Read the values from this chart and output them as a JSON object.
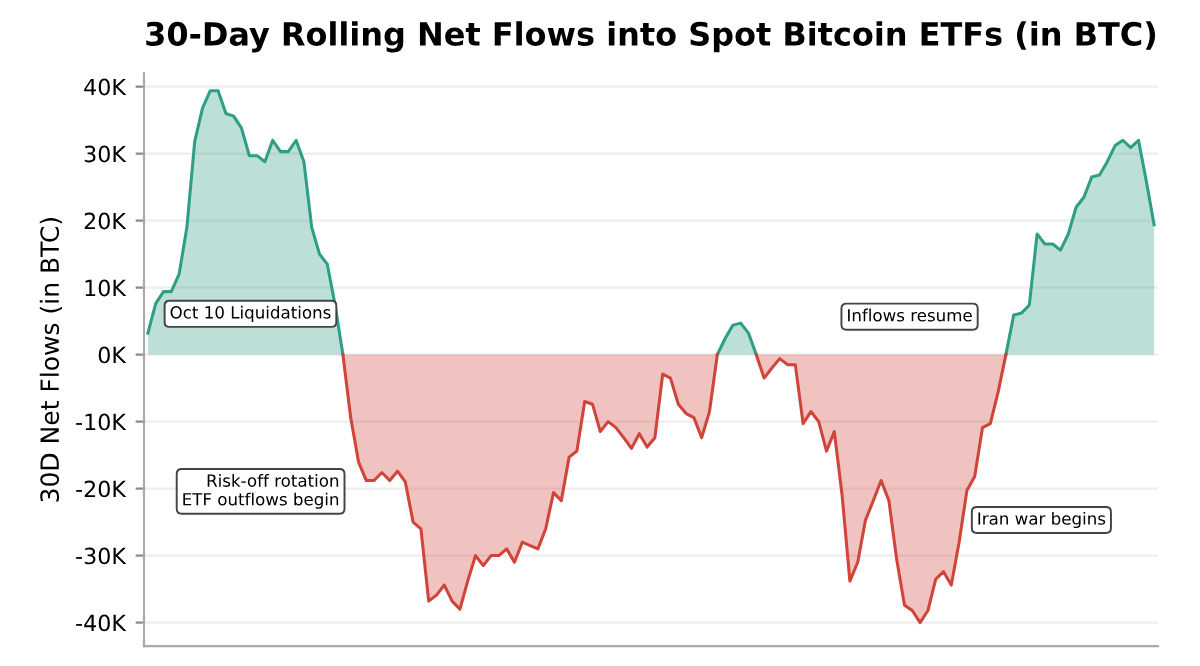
{
  "chart_data": {
    "type": "area",
    "title": "30-Day Rolling Net Flows into Spot Bitcoin ETFs (in BTC)",
    "ylabel": "30D Net Flows (in BTC)",
    "categories": [
      null,
      null,
      null,
      null,
      null,
      null,
      null,
      null,
      null,
      null,
      null,
      null,
      null,
      null,
      null,
      null,
      null,
      null,
      null,
      null,
      null,
      null,
      null,
      null,
      null,
      null,
      null,
      null,
      null,
      null,
      null,
      null,
      null,
      null,
      null,
      null,
      null,
      null,
      null,
      null,
      null,
      null,
      null,
      null,
      null,
      null,
      null,
      null,
      null,
      null,
      null,
      null,
      null,
      null,
      null,
      null,
      null,
      null,
      null,
      null,
      null,
      null,
      null,
      null,
      null,
      null,
      null,
      null,
      null,
      null,
      null,
      null,
      null,
      null,
      null,
      null,
      null,
      null,
      null,
      null,
      null,
      null,
      null,
      null,
      null,
      null,
      null,
      null,
      null,
      null,
      null,
      null,
      null,
      null,
      null,
      null,
      null,
      null,
      null,
      null,
      null,
      null,
      null,
      null,
      null,
      null,
      null,
      null,
      null,
      null,
      null,
      null,
      null,
      null,
      null,
      null,
      null,
      null,
      null,
      null,
      null,
      null,
      null,
      null,
      null,
      null,
      null,
      null,
      null,
      null
    ],
    "series": [
      {
        "color": "#2e9e85",
        "values": [
          3200,
          7600,
          9400,
          9400,
          12000,
          19000,
          31800,
          36800,
          39400,
          39400,
          36000,
          35600,
          33800,
          29700,
          29700,
          28800,
          32000,
          30300,
          30300,
          32000,
          28800,
          19000,
          15000,
          13500,
          7400,
          0,
          null,
          null,
          null,
          null,
          null,
          null,
          null,
          null,
          null,
          null,
          null,
          null,
          null,
          null,
          null,
          null,
          null,
          null,
          null,
          null,
          null,
          null,
          null,
          null,
          null,
          null,
          null,
          null,
          null,
          null,
          null,
          null,
          null,
          null,
          null,
          null,
          null,
          null,
          null,
          null,
          null,
          null,
          null,
          null,
          null,
          null,
          null,
          0,
          2400,
          4400,
          4700,
          3200,
          0,
          null,
          null,
          null,
          null,
          null,
          null,
          null,
          null,
          null,
          null,
          null,
          null,
          null,
          null,
          null,
          null,
          null,
          null,
          null,
          null,
          null,
          null,
          null,
          null,
          null,
          null,
          null,
          null,
          null,
          null,
          null,
          0,
          5900,
          6200,
          7400,
          18000,
          16500,
          16500,
          15600,
          18000,
          22000,
          23500,
          26500,
          26800,
          28800,
          31200,
          32000,
          30900,
          32000,
          25900,
          19400
        ]
      },
      {
        "color": "#d0443a",
        "values": [
          null,
          null,
          null,
          null,
          null,
          null,
          null,
          null,
          null,
          null,
          null,
          null,
          null,
          null,
          null,
          null,
          null,
          null,
          null,
          null,
          null,
          null,
          null,
          null,
          null,
          0,
          -9400,
          -16000,
          -18800,
          -18800,
          -17600,
          -18800,
          -17400,
          -19000,
          -25000,
          -26000,
          -36800,
          -35900,
          -34400,
          -36800,
          -38000,
          -33800,
          -30000,
          -31500,
          -30000,
          -30000,
          -29000,
          -31000,
          -28000,
          -28500,
          -29000,
          -26000,
          -20600,
          -21800,
          -15300,
          -14400,
          -7000,
          -7400,
          -11500,
          -10000,
          -10900,
          -12400,
          -14000,
          -11800,
          -13800,
          -12400,
          -2900,
          -3500,
          -7400,
          -8800,
          -9400,
          -12400,
          -8500,
          0,
          null,
          null,
          null,
          null,
          0,
          -3500,
          -2000,
          -600,
          -1500,
          -1500,
          -10300,
          -8500,
          -10000,
          -14400,
          -11500,
          -21000,
          -33800,
          -31000,
          -24700,
          -21800,
          -18800,
          -21800,
          -30600,
          -37400,
          -38200,
          -40000,
          -38200,
          -33500,
          -32400,
          -34400,
          -28000,
          -20300,
          -18200,
          -10900,
          -10300,
          -5600,
          0,
          null,
          null,
          null,
          null,
          null,
          null,
          null,
          null,
          null,
          null,
          null,
          null,
          null,
          null,
          null,
          null,
          null,
          null,
          null
        ]
      }
    ],
    "ylim": [
      -43500,
      42000
    ],
    "yticks": [
      {
        "value": -40000,
        "label": "-40K"
      },
      {
        "value": -30000,
        "label": "-30K"
      },
      {
        "value": -20000,
        "label": "-20K"
      },
      {
        "value": -10000,
        "label": "-10K"
      },
      {
        "value": 0,
        "label": "0K"
      },
      {
        "value": 10000,
        "label": "10K"
      },
      {
        "value": 20000,
        "label": "20K"
      },
      {
        "value": 30000,
        "label": "30K"
      },
      {
        "value": 40000,
        "label": "40K"
      }
    ],
    "tick_labels": "y",
    "grid": "y",
    "legend": false,
    "annotations": [
      "Oct 10 Liquidations",
      "Risk-off rotation\nETF outflows begin",
      "Iran war begins",
      "Inflows resume"
    ]
  }
}
